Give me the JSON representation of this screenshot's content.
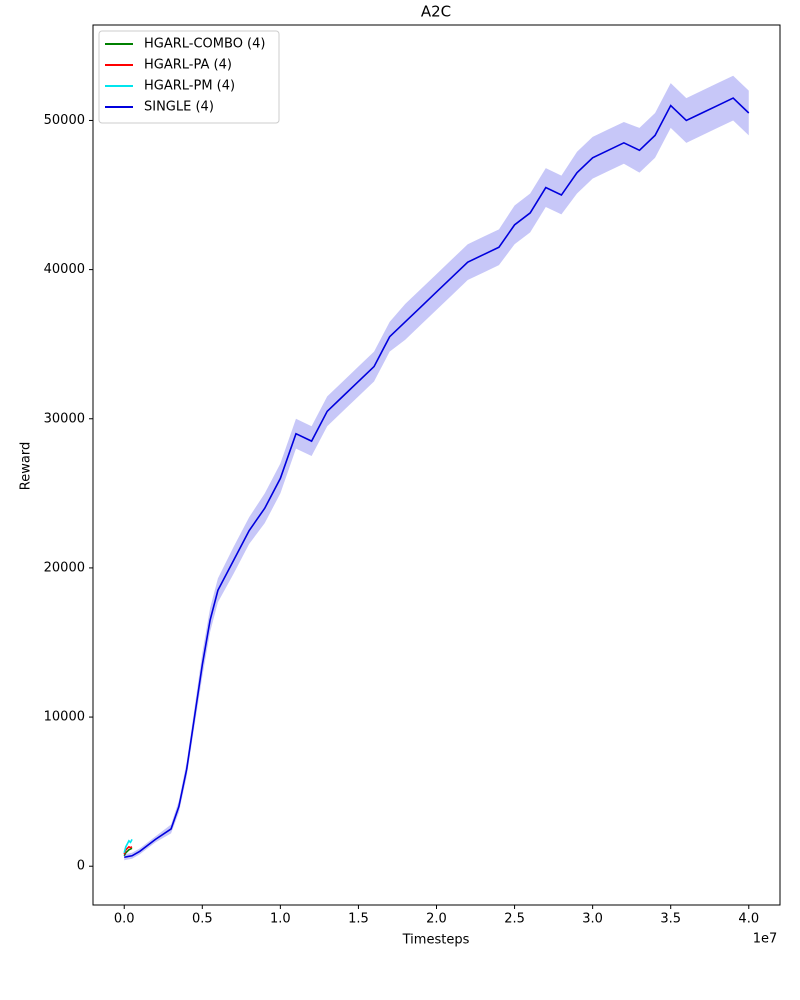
{
  "chart_data": {
    "type": "line",
    "title": "A2C",
    "x_label": "Timesteps",
    "y_label": "Reward",
    "x_offset_label": "1e7",
    "xlim": [
      -2000000,
      42000000
    ],
    "ylim": [
      -2600,
      56400
    ],
    "xticks": [
      {
        "value": 0,
        "label": "0.0"
      },
      {
        "value": 5000000,
        "label": "0.5"
      },
      {
        "value": 10000000,
        "label": "1.0"
      },
      {
        "value": 15000000,
        "label": "1.5"
      },
      {
        "value": 20000000,
        "label": "2.0"
      },
      {
        "value": 25000000,
        "label": "2.5"
      },
      {
        "value": 30000000,
        "label": "3.0"
      },
      {
        "value": 35000000,
        "label": "3.5"
      },
      {
        "value": 40000000,
        "label": "4.0"
      }
    ],
    "yticks": [
      0,
      10000,
      20000,
      30000,
      40000,
      50000
    ],
    "legend": "upper left",
    "series": [
      {
        "name": "HGARL-COMBO (4)",
        "color": "#008000",
        "x": [
          0,
          100000,
          200000,
          300000,
          400000,
          500000
        ],
        "values": [
          700,
          900,
          1000,
          1100,
          1150,
          1200
        ]
      },
      {
        "name": "HGARL-PA (4)",
        "color": "#ff0000",
        "x": [
          0,
          100000,
          200000,
          300000,
          400000,
          500000
        ],
        "values": [
          800,
          1100,
          1200,
          1300,
          1250,
          1300
        ]
      },
      {
        "name": "HGARL-PM (4)",
        "color": "#00e5ee",
        "x": [
          0,
          100000,
          200000,
          300000,
          400000,
          500000
        ],
        "values": [
          900,
          1300,
          1500,
          1700,
          1600,
          1800
        ]
      },
      {
        "name": "SINGLE (4)",
        "color": "#0000dd",
        "x": [
          0,
          500000,
          1000000,
          2000000,
          3000000,
          3500000,
          4000000,
          4500000,
          5000000,
          5500000,
          6000000,
          7000000,
          8000000,
          9000000,
          10000000,
          11000000,
          12000000,
          13000000,
          14000000,
          15000000,
          16000000,
          17000000,
          18000000,
          19000000,
          20000000,
          21000000,
          22000000,
          23000000,
          24000000,
          25000000,
          26000000,
          27000000,
          28000000,
          29000000,
          30000000,
          31000000,
          32000000,
          33000000,
          34000000,
          35000000,
          36000000,
          37000000,
          38000000,
          39000000,
          40000000
        ],
        "values": [
          600,
          700,
          1000,
          1800,
          2500,
          4000,
          6500,
          10000,
          13500,
          16500,
          18500,
          20500,
          22500,
          24000,
          26000,
          29000,
          28500,
          30500,
          31500,
          32500,
          33500,
          35500,
          36500,
          37500,
          38500,
          39500,
          40500,
          41000,
          41500,
          43000,
          43800,
          45500,
          45000,
          46500,
          47500,
          48000,
          48500,
          48000,
          49000,
          51000,
          50000,
          50500,
          51000,
          51500,
          50500
        ],
        "band_lower": [
          400,
          500,
          800,
          1600,
          2200,
          3600,
          6000,
          9400,
          12700,
          15700,
          17700,
          19600,
          21600,
          23000,
          25000,
          28000,
          27500,
          29500,
          30500,
          31500,
          32500,
          34500,
          35300,
          36300,
          37300,
          38300,
          39300,
          39800,
          40300,
          41700,
          42500,
          44200,
          43700,
          45100,
          46100,
          46600,
          47100,
          46500,
          47500,
          49500,
          48500,
          49000,
          49500,
          50000,
          49000
        ],
        "band_upper": [
          800,
          900,
          1200,
          2000,
          2800,
          4400,
          7000,
          10600,
          14300,
          17300,
          19300,
          21400,
          23400,
          25000,
          27000,
          30000,
          29500,
          31500,
          32500,
          33500,
          34500,
          36500,
          37700,
          38700,
          39700,
          40700,
          41700,
          42200,
          42700,
          44300,
          45100,
          46800,
          46300,
          47900,
          48900,
          49400,
          49900,
          49500,
          50500,
          52500,
          51500,
          52000,
          52500,
          53000,
          52000
        ]
      }
    ]
  }
}
